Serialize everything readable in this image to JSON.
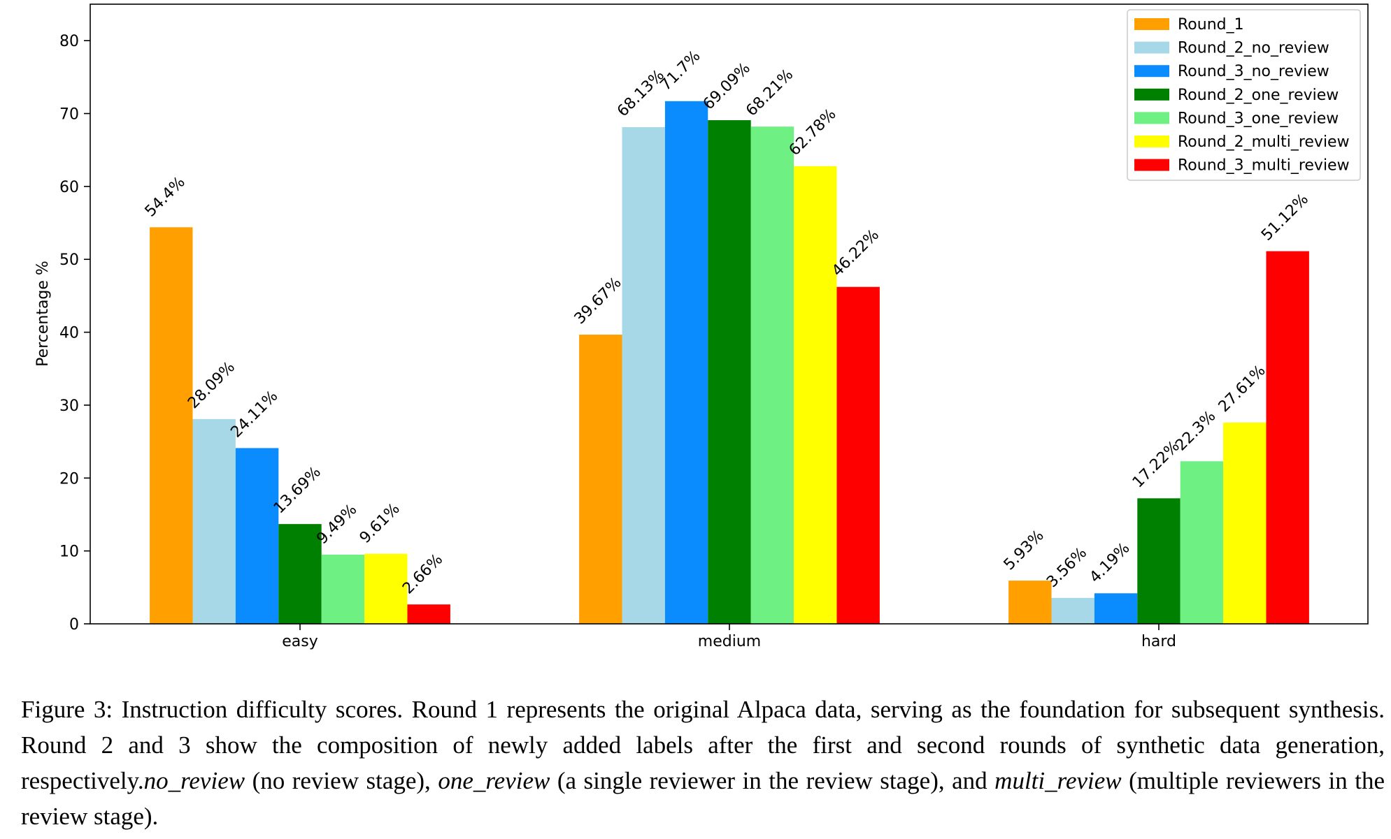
{
  "caption": {
    "part1": "Figure 3: Instruction difficulty scores. Round 1 represents the original Alpaca data, serving as the foundation for subsequent synthesis. Round 2 and 3 show the composition of newly added labels after the first and second rounds of synthetic data generation, respectively.",
    "term1": "no_review",
    "part2": " (no review stage), ",
    "term2": "one_review",
    "part3": " (a single reviewer in the review stage), and ",
    "term3": "multi_review",
    "part4": " (multiple reviewers in the review stage)."
  },
  "chart_data": {
    "type": "bar",
    "title": "",
    "xlabel": "",
    "ylabel": "Percentage %",
    "ylim": [
      0,
      85
    ],
    "yticks": [
      0,
      10,
      20,
      30,
      40,
      50,
      60,
      70,
      80
    ],
    "grid": false,
    "legend": "top-right",
    "categories": [
      "easy",
      "medium",
      "hard"
    ],
    "series": [
      {
        "name": "Round_1",
        "color": "#FFA000",
        "values": [
          54.4,
          39.67,
          5.93
        ],
        "labels": [
          "54.4%",
          "39.67%",
          "5.93%"
        ]
      },
      {
        "name": "Round_2_no_review",
        "color": "#A6D8E8",
        "values": [
          28.09,
          68.13,
          3.56
        ],
        "labels": [
          "28.09%",
          "68.13%",
          "3.56%"
        ]
      },
      {
        "name": "Round_3_no_review",
        "color": "#0A8CFF",
        "values": [
          24.11,
          71.7,
          4.19
        ],
        "labels": [
          "24.11%",
          "71.7%",
          "4.19%"
        ]
      },
      {
        "name": "Round_2_one_review",
        "color": "#008000",
        "values": [
          13.69,
          69.09,
          17.22
        ],
        "labels": [
          "13.69%",
          "69.09%",
          "17.22%"
        ]
      },
      {
        "name": "Round_3_one_review",
        "color": "#6EF083",
        "values": [
          9.49,
          68.21,
          22.3
        ],
        "labels": [
          "9.49%",
          "68.21%",
          "22.3%"
        ]
      },
      {
        "name": "Round_2_multi_review",
        "color": "#FFFF00",
        "values": [
          9.61,
          62.78,
          27.61
        ],
        "labels": [
          "9.61%",
          "62.78%",
          "27.61%"
        ]
      },
      {
        "name": "Round_3_multi_review",
        "color": "#FF0000",
        "values": [
          2.66,
          46.22,
          51.12
        ],
        "labels": [
          "2.66%",
          "46.22%",
          "51.12%"
        ]
      }
    ]
  }
}
